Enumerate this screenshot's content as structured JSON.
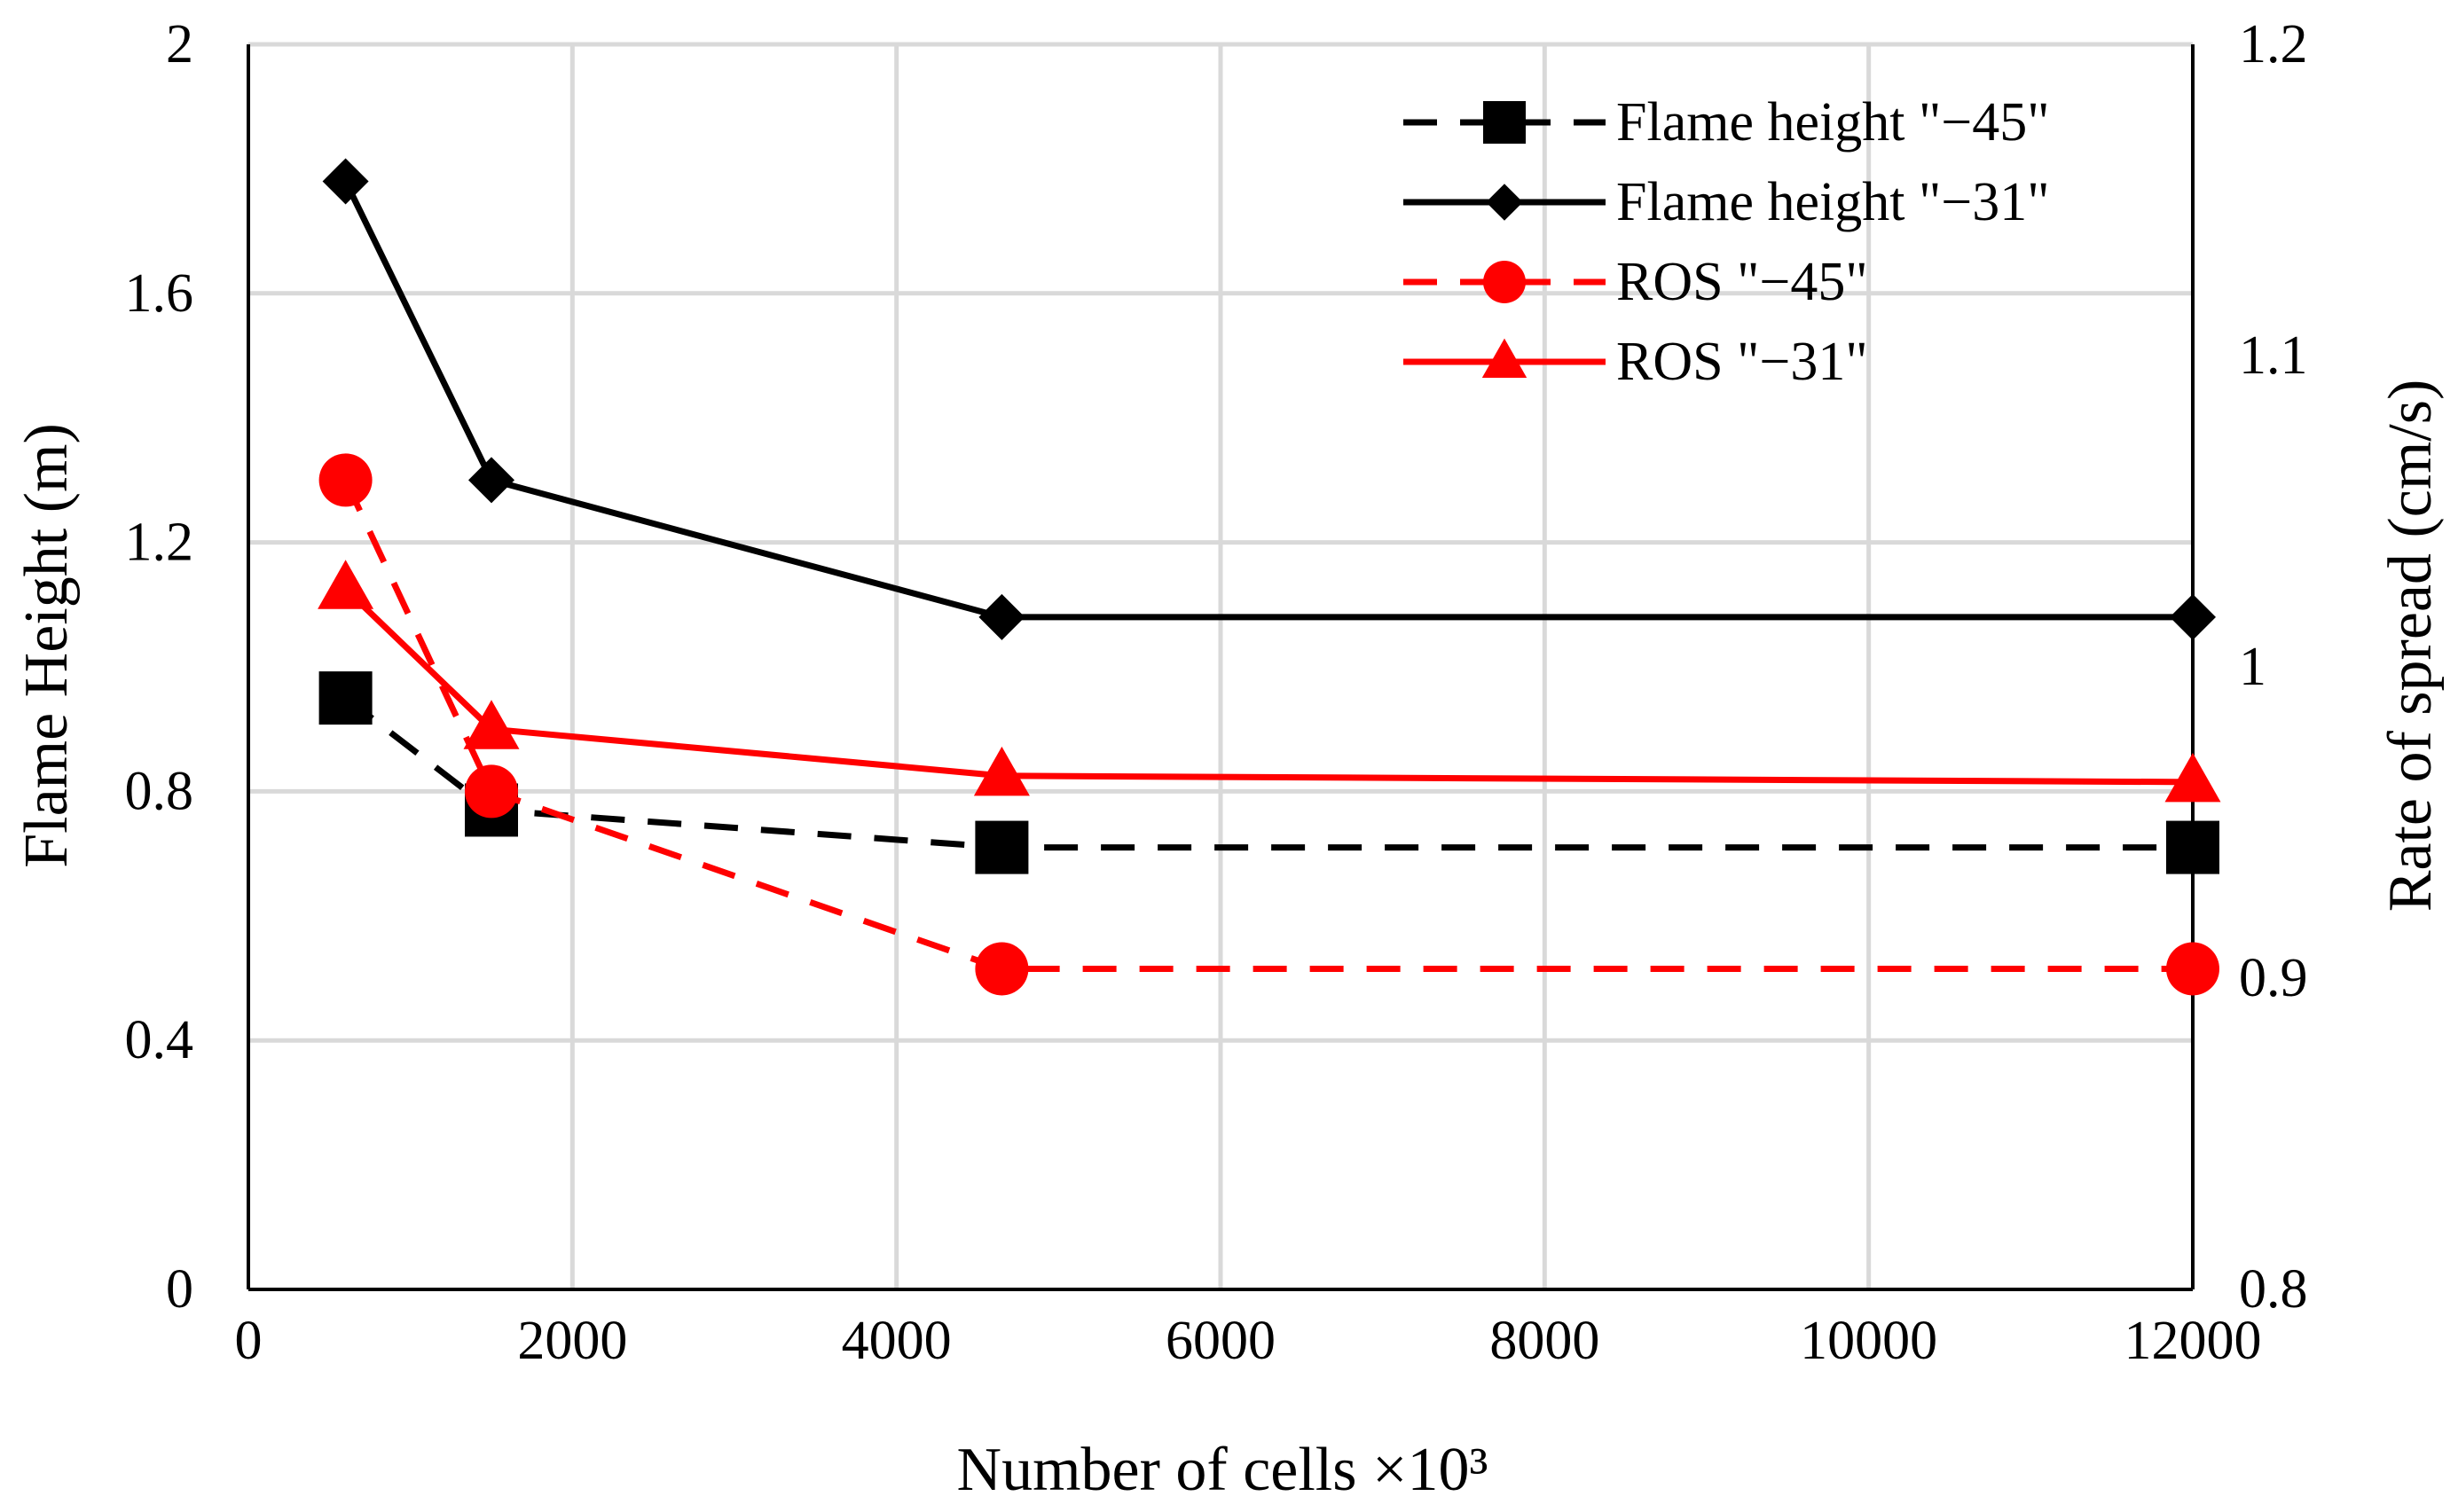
{
  "chart_data": {
    "type": "line",
    "title": "",
    "xlabel": "Number of cells ×10³",
    "ylabel_left": "Flame Height (m)",
    "ylabel_right": "Rate of spread (cm/s)",
    "xlim": [
      0,
      12000
    ],
    "ylim_left": [
      0,
      2
    ],
    "ylim_right": [
      0.8,
      1.2
    ],
    "x_ticks": [
      "0",
      "2000",
      "4000",
      "6000",
      "8000",
      "10000",
      "12000"
    ],
    "x_tick_values": [
      0,
      2000,
      4000,
      6000,
      8000,
      10000,
      12000
    ],
    "y_left_ticks": [
      "0",
      "0.4",
      "0.8",
      "1.2",
      "1.6",
      "2"
    ],
    "y_left_tick_values": [
      0,
      0.4,
      0.8,
      1.2,
      1.6,
      2
    ],
    "y_right_ticks": [
      "0.8",
      "0.9",
      "1",
      "1.1",
      "1.2"
    ],
    "y_right_tick_values": [
      0.8,
      0.9,
      1.0,
      1.1,
      1.2
    ],
    "grid": true,
    "legend_position": "top-right",
    "series": [
      {
        "name": "Flame height  \"−45\"",
        "axis": "left",
        "color": "#000000",
        "dash": "dashed",
        "marker": "square",
        "x": [
          600,
          1500,
          4650,
          12000
        ],
        "values": [
          0.95,
          0.77,
          0.71,
          0.71
        ]
      },
      {
        "name": "Flame height  \"−31\"",
        "axis": "left",
        "color": "#000000",
        "dash": "solid",
        "marker": "diamond",
        "x": [
          600,
          1500,
          4650,
          12000
        ],
        "values": [
          1.78,
          1.3,
          1.08,
          1.08
        ]
      },
      {
        "name": "ROS \"−45\"",
        "axis": "right",
        "color": "#ff0000",
        "dash": "dashed",
        "marker": "circle",
        "x": [
          600,
          1500,
          4650,
          12000
        ],
        "values": [
          1.06,
          0.96,
          0.903,
          0.903
        ]
      },
      {
        "name": "ROS \"−31\"",
        "axis": "right",
        "color": "#ff0000",
        "dash": "solid",
        "marker": "triangle",
        "x": [
          600,
          1500,
          4650,
          12000
        ],
        "values": [
          1.025,
          0.98,
          0.965,
          0.963
        ]
      }
    ]
  }
}
